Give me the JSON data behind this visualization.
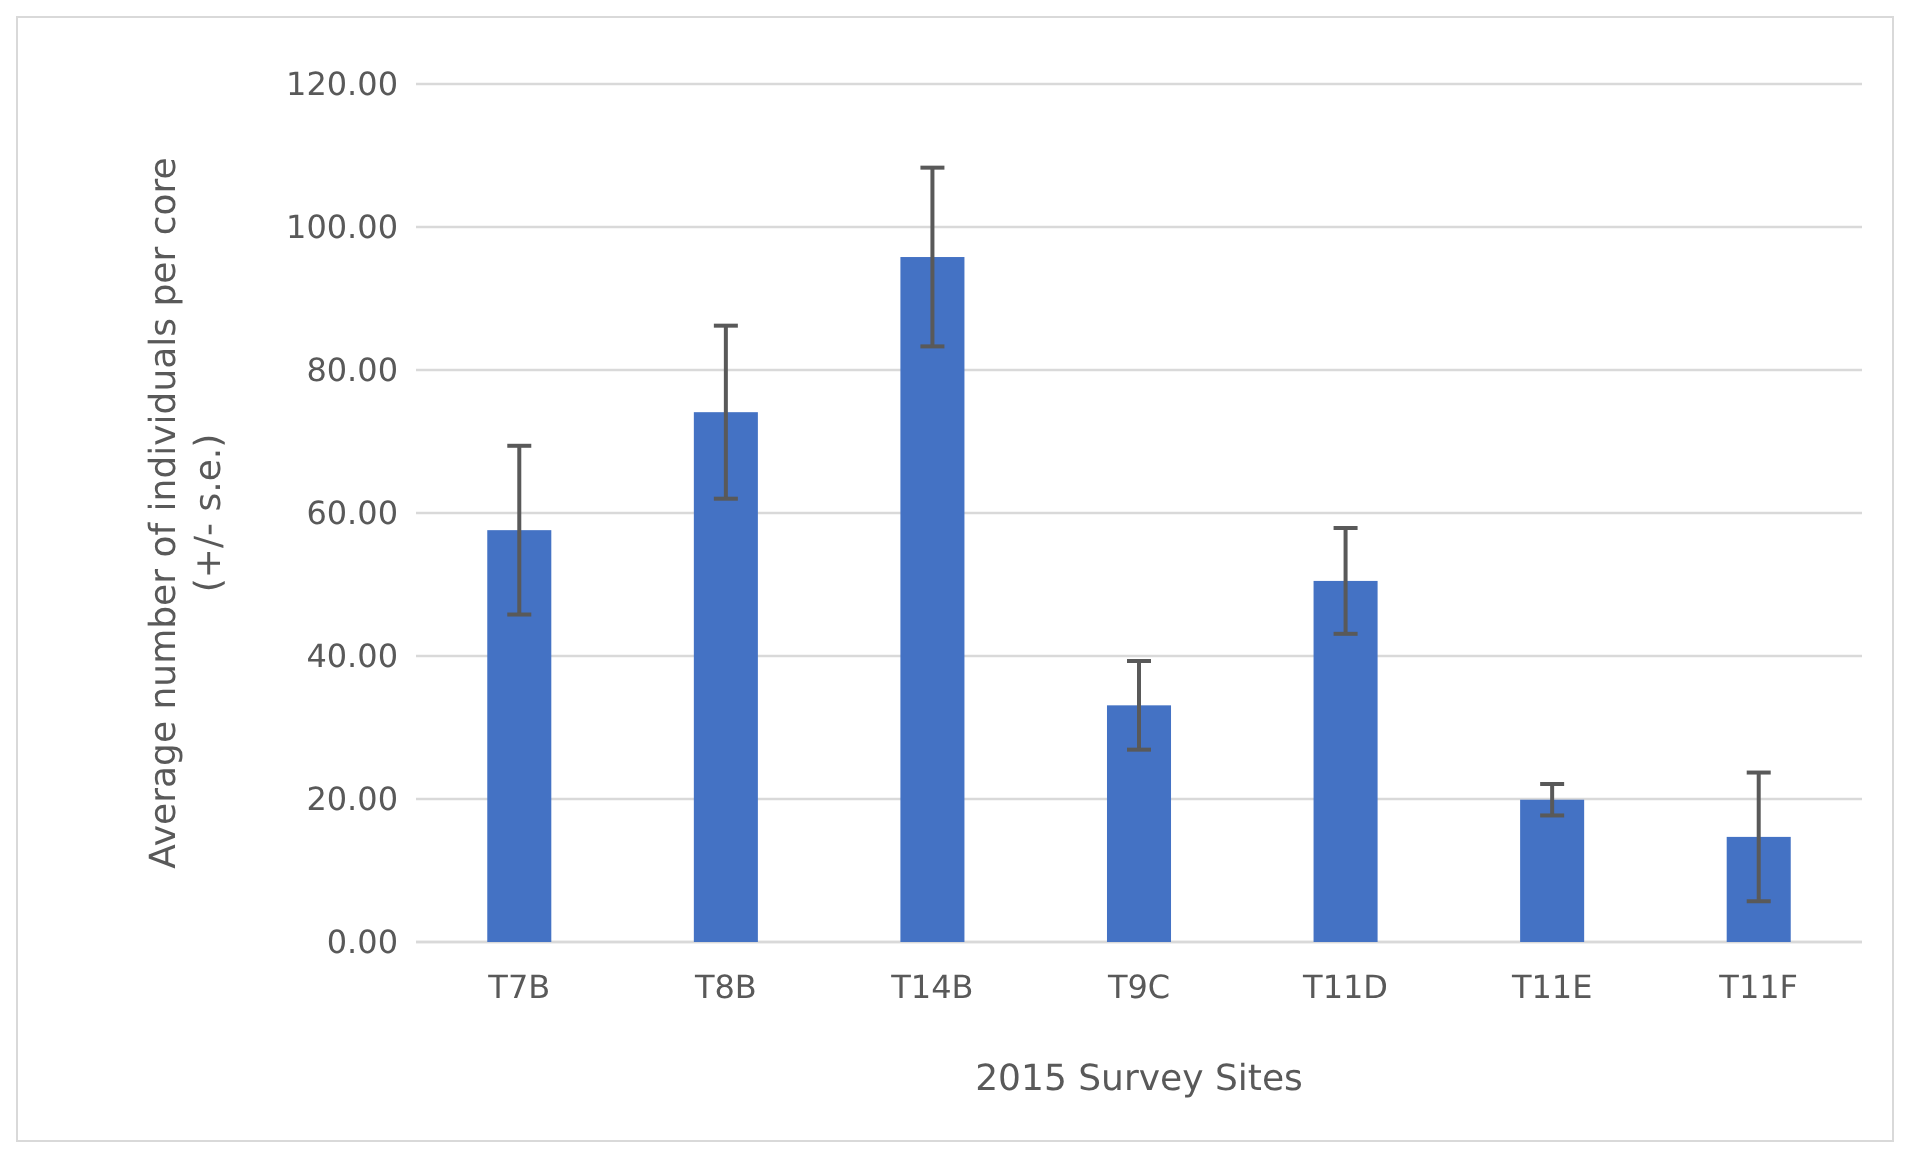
{
  "chart_data": {
    "type": "bar",
    "xlabel": "2015 Survey Sites",
    "ylabel": "Average number of individuals per core (+/- s.e.)",
    "categories": [
      "T7B",
      "T8B",
      "T14B",
      "T9C",
      "T11D",
      "T11E",
      "T11F"
    ],
    "values": [
      57.6,
      74.1,
      95.8,
      33.1,
      50.5,
      19.9,
      14.7
    ],
    "errors": [
      11.8,
      12.1,
      12.5,
      6.2,
      7.4,
      2.2,
      9.0
    ],
    "color": "#4472c4",
    "ylim": [
      0,
      120
    ],
    "yticks": [
      {
        "value": 0,
        "label": "0.00"
      },
      {
        "value": 20,
        "label": "20.00"
      },
      {
        "value": 40,
        "label": "40.00"
      },
      {
        "value": 60,
        "label": "60.00"
      },
      {
        "value": 80,
        "label": "80.00"
      },
      {
        "value": 100,
        "label": "100.00"
      },
      {
        "value": 120,
        "label": "120.00"
      }
    ],
    "grid": "y"
  }
}
